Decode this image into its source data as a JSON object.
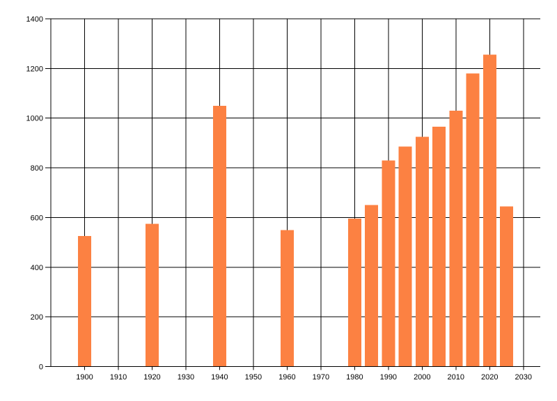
{
  "chart_data": {
    "type": "bar",
    "title": "",
    "xlabel": "",
    "ylabel": "",
    "x": [
      1900,
      1920,
      1940,
      1960,
      1980,
      1985,
      1990,
      1995,
      2000,
      2005,
      2010,
      2015,
      2020,
      2025
    ],
    "values": [
      525,
      575,
      1050,
      550,
      595,
      650,
      830,
      885,
      925,
      965,
      1030,
      1180,
      1255,
      645
    ],
    "x_domain": [
      1890,
      2035
    ],
    "y_domain": [
      0,
      1400
    ],
    "x_ticks": [
      1900,
      1910,
      1920,
      1930,
      1940,
      1950,
      1960,
      1970,
      1980,
      1990,
      2000,
      2010,
      2020,
      2030
    ],
    "y_ticks": [
      0,
      200,
      400,
      600,
      800,
      1000,
      1200,
      1400
    ],
    "grid": "on",
    "legend": "none",
    "bar_color": "#FC8142",
    "grid_color": "#000000",
    "axis_color": "#000000",
    "text_color": "#000000",
    "background_color": "#FFFFFF"
  }
}
